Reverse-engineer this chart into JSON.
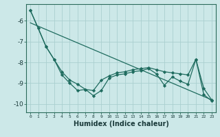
{
  "xlabel": "Humidex (Indice chaleur)",
  "bg_color": "#cce8e8",
  "grid_color": "#aacfcf",
  "line_color": "#1e6b5e",
  "xlim": [
    -0.5,
    23.5
  ],
  "ylim": [
    -10.4,
    -5.2
  ],
  "x_ticks": [
    0,
    1,
    2,
    3,
    4,
    5,
    6,
    7,
    8,
    9,
    10,
    11,
    12,
    13,
    14,
    15,
    16,
    17,
    18,
    19,
    20,
    21,
    22,
    23
  ],
  "y_ticks": [
    -10,
    -9,
    -8,
    -7,
    -6
  ],
  "line1_x": [
    0,
    1,
    2,
    3,
    4,
    5,
    6,
    7,
    8,
    9,
    10,
    11,
    12,
    13,
    14,
    15,
    16,
    17,
    18,
    19,
    20,
    21,
    22,
    23
  ],
  "line1_y": [
    -5.5,
    -6.35,
    -7.25,
    -7.85,
    -8.45,
    -8.85,
    -9.05,
    -9.3,
    -9.35,
    -8.85,
    -8.65,
    -8.5,
    -8.45,
    -8.35,
    -8.3,
    -8.25,
    -8.35,
    -8.45,
    -8.5,
    -8.55,
    -8.6,
    -7.85,
    -9.25,
    -9.8
  ],
  "line2_x": [
    0,
    2,
    3,
    4,
    5,
    6,
    7,
    8,
    9,
    10,
    11,
    12,
    13,
    14,
    15,
    16,
    17,
    18,
    19,
    20,
    21,
    22,
    23
  ],
  "line2_y": [
    -5.5,
    -7.25,
    -7.85,
    -8.6,
    -9.0,
    -9.35,
    -9.3,
    -9.6,
    -9.35,
    -8.75,
    -8.6,
    -8.55,
    -8.45,
    -8.4,
    -8.3,
    -8.55,
    -9.1,
    -8.7,
    -8.9,
    -9.05,
    -7.85,
    -9.55,
    -9.85
  ],
  "line3_x": [
    0,
    23
  ],
  "line3_y": [
    -6.1,
    -9.8
  ]
}
